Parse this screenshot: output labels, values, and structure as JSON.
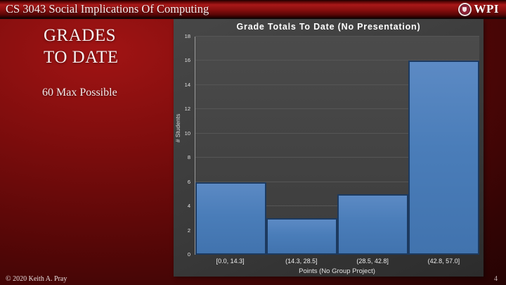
{
  "header": {
    "title": "CS 3043 Social Implications Of Computing",
    "logo_text": "WPI"
  },
  "title_block": {
    "line1": "GRADES",
    "line2": "TO DATE",
    "subtitle": "60 Max Possible"
  },
  "chart_data": {
    "type": "bar",
    "title": "Grade Totals To Date (No Presentation)",
    "categories": [
      "[0.0, 14.3]",
      "(14.3, 28.5]",
      "(28.5, 42.8]",
      "(42.8, 57.0]"
    ],
    "values": [
      6,
      3,
      5,
      16
    ],
    "xlabel": "Points (No Group Project)",
    "ylabel": "# Students",
    "ylim": [
      0,
      18
    ],
    "ytick_step": 2,
    "grid": true,
    "legend": "none",
    "bar_color": "#4a7db9",
    "bar_border_color": "#1d3a5f",
    "panel_bg": "#3a3a3a",
    "plot_bg": "#434343"
  },
  "footer": {
    "copyright": "© 2020 Keith A. Pray",
    "page_number": "4"
  }
}
